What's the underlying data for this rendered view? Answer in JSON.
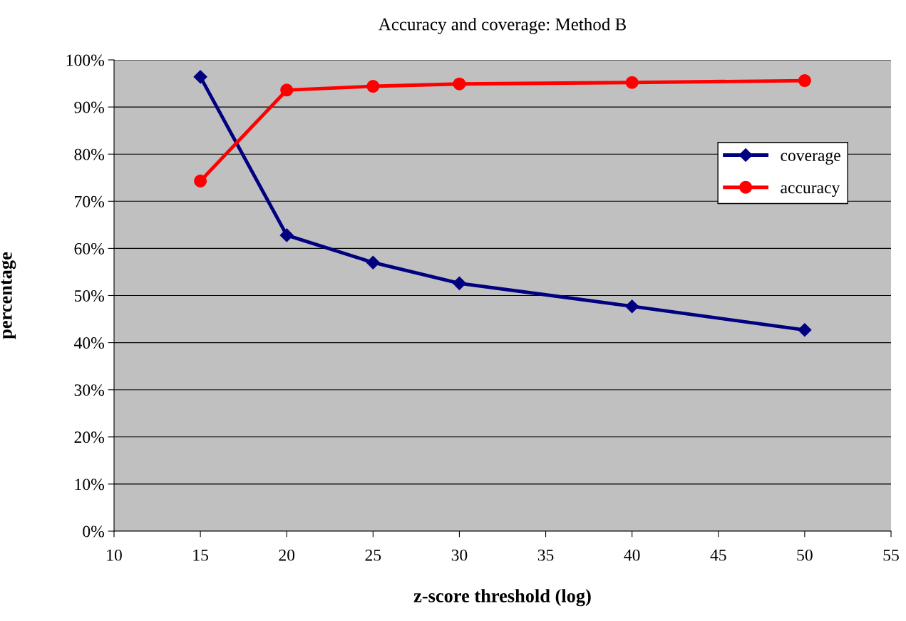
{
  "chart_data": {
    "type": "line",
    "title": "Accuracy and coverage: Method B",
    "xlabel": "z-score threshold (log)",
    "ylabel": "percentage",
    "x": [
      15,
      20,
      25,
      30,
      40,
      50
    ],
    "series": [
      {
        "name": "coverage",
        "color": "#000080",
        "marker": "diamond",
        "values": [
          96.4,
          62.8,
          57.0,
          52.6,
          47.7,
          42.7
        ]
      },
      {
        "name": "accuracy",
        "color": "#ff0000",
        "marker": "circle",
        "values": [
          74.3,
          93.6,
          94.4,
          94.9,
          95.2,
          95.6
        ]
      }
    ],
    "xlim": [
      10,
      55
    ],
    "xticks": [
      10,
      15,
      20,
      25,
      30,
      35,
      40,
      45,
      50,
      55
    ],
    "ylim": [
      0,
      100
    ],
    "yticks": [
      {
        "value": 0,
        "label": "0%"
      },
      {
        "value": 10,
        "label": "10%"
      },
      {
        "value": 20,
        "label": "20%"
      },
      {
        "value": 30,
        "label": "30%"
      },
      {
        "value": 40,
        "label": "40%"
      },
      {
        "value": 50,
        "label": "50%"
      },
      {
        "value": 60,
        "label": "60%"
      },
      {
        "value": 70,
        "label": "70%"
      },
      {
        "value": 80,
        "label": "80%"
      },
      {
        "value": 90,
        "label": "90%"
      },
      {
        "value": 100,
        "label": "100%"
      }
    ],
    "grid": "y",
    "legend": "right",
    "line_style": "solid"
  }
}
